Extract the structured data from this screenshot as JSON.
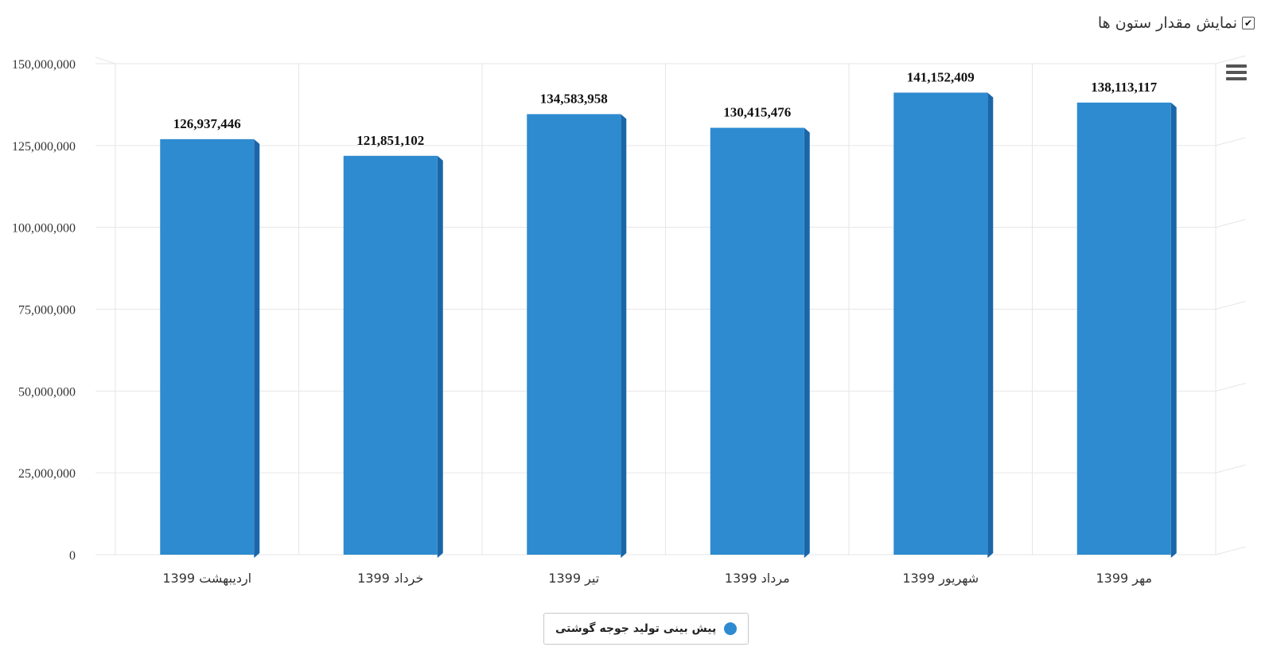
{
  "toggle": {
    "label": "نمایش مقدار ستون ها",
    "checked": true
  },
  "menu": {
    "icon": "hamburger-menu-icon"
  },
  "colors": {
    "bar": "#2e8bd0",
    "bar_side": "#1a66a8",
    "grid": "#e6e6e6",
    "axis_text": "#333333"
  },
  "chart_data": {
    "type": "bar",
    "categories": [
      "اردیبهشت 1399",
      "خرداد 1399",
      "تیر 1399",
      "مرداد 1399",
      "شهریور 1399",
      "مهر 1399"
    ],
    "series": [
      {
        "name": "پیش بینی تولید جوجه گوشتی",
        "values": [
          126937446,
          121851102,
          134583958,
          130415476,
          141152409,
          138113117
        ]
      }
    ],
    "value_labels": [
      "126,937,446",
      "121,851,102",
      "134,583,958",
      "130,415,476",
      "141,152,409",
      "138,113,117"
    ],
    "y_ticks": [
      "0",
      "25,000,000",
      "50,000,000",
      "75,000,000",
      "100,000,000",
      "125,000,000",
      "150,000,000"
    ],
    "ylim": [
      0,
      150000000
    ],
    "grid": true,
    "legend_position": "bottom-center",
    "title": "",
    "xlabel": "",
    "ylabel": ""
  }
}
